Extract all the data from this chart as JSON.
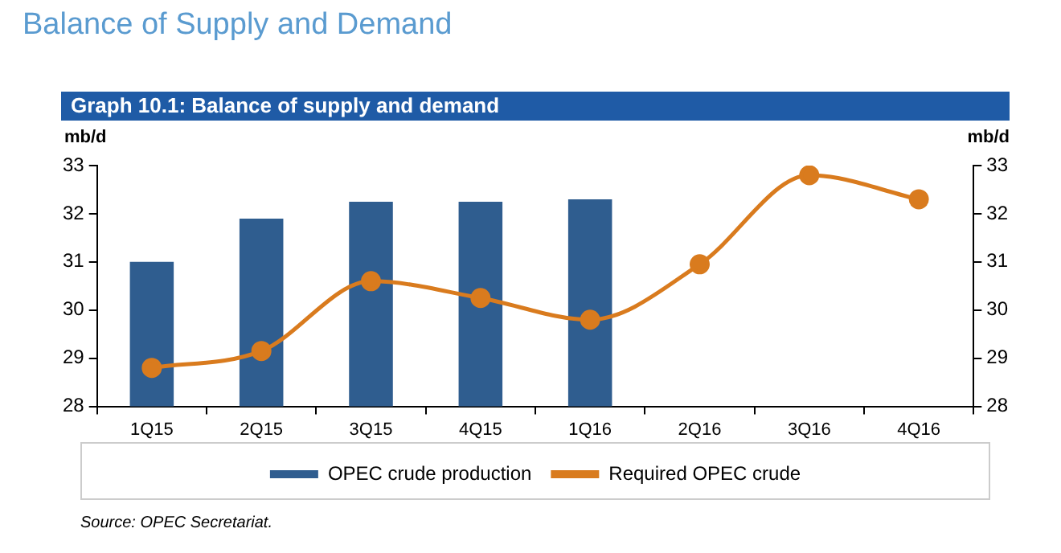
{
  "chart_data": {
    "type": "bar",
    "title": "Balance of Supply and Demand",
    "subtitle": "Graph 10.1: Balance of supply and demand",
    "ylabel": "mb/d",
    "y2label": "mb/d",
    "categories": [
      "1Q15",
      "2Q15",
      "3Q15",
      "4Q15",
      "1Q16",
      "2Q16",
      "3Q16",
      "4Q16"
    ],
    "series": [
      {
        "name": "OPEC crude production",
        "color": "#2f5d8f",
        "values": [
          31.0,
          31.9,
          32.25,
          32.25,
          32.3,
          null,
          null,
          null
        ]
      },
      {
        "name": "Required OPEC crude",
        "type": "line",
        "color": "#d97b1e",
        "marker": "circle",
        "values": [
          28.8,
          29.15,
          30.6,
          30.25,
          29.8,
          30.95,
          32.8,
          32.3
        ]
      }
    ],
    "ylim": [
      28,
      33
    ],
    "yticks": [
      28,
      29,
      30,
      31,
      32,
      33
    ],
    "y2lim": [
      28,
      33
    ],
    "y2ticks": [
      28,
      29,
      30,
      31,
      32,
      33
    ],
    "grid": false,
    "legend": "bottom",
    "annotations": [
      "Source: OPEC Secretariat."
    ]
  }
}
